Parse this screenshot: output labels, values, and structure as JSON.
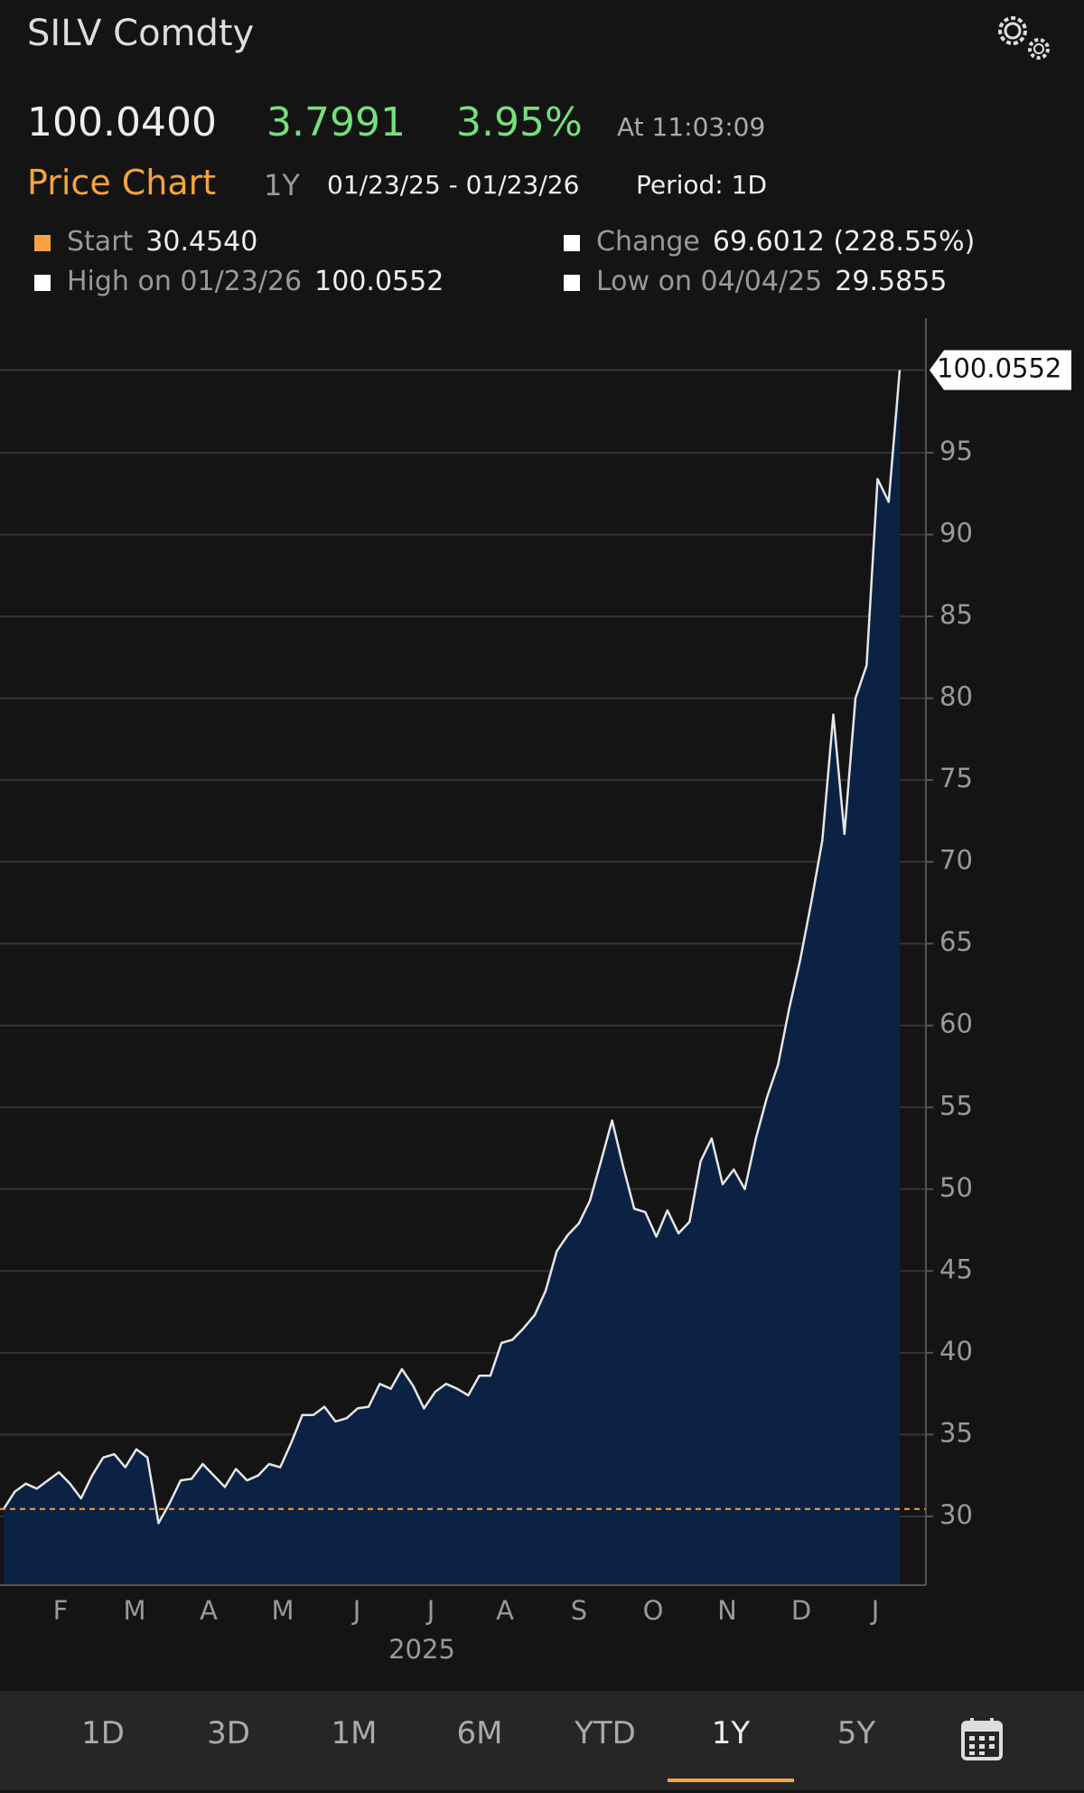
{
  "header": {
    "title": "SILV Comdty",
    "price": "100.0400",
    "change": "3.7991",
    "change_pct": "3.95%",
    "time": "At 11:03:09"
  },
  "chart_header": {
    "title": "Price Chart",
    "range": "1Y",
    "dates": "01/23/25 - 01/23/26",
    "period": "Period: 1D"
  },
  "stats": [
    {
      "label": "Start",
      "value": "30.4540",
      "color": "#f4a340"
    },
    {
      "label": "Change",
      "value": "69.6012 (228.55%)",
      "color": "#ffffff"
    },
    {
      "label": "High on 01/23/26",
      "value": "100.0552",
      "color": "#ffffff"
    },
    {
      "label": "Low on 04/04/25",
      "value": "29.5855",
      "color": "#ffffff"
    }
  ],
  "chart_data": {
    "type": "area",
    "color": "#e6e6e6",
    "fill": "#0b2244",
    "months": [
      "F",
      "M",
      "A",
      "M",
      "J",
      "J",
      "A",
      "S",
      "O",
      "N",
      "D",
      "J"
    ],
    "year": "2025",
    "values": [
      30.45,
      31.5,
      32.0,
      31.7,
      32.2,
      32.7,
      32.0,
      31.1,
      32.5,
      33.6,
      33.8,
      33.0,
      34.1,
      33.6,
      29.59,
      30.8,
      32.2,
      32.3,
      33.2,
      32.5,
      31.8,
      32.9,
      32.2,
      32.5,
      33.2,
      33.0,
      34.5,
      36.2,
      36.2,
      36.7,
      35.8,
      36.0,
      36.6,
      36.7,
      38.1,
      37.8,
      39.0,
      38.0,
      36.6,
      37.6,
      38.1,
      37.8,
      37.4,
      38.6,
      38.6,
      40.6,
      40.8,
      41.5,
      42.3,
      43.8,
      46.2,
      47.2,
      47.9,
      49.3,
      51.7,
      54.2,
      51.4,
      48.8,
      48.6,
      47.1,
      48.7,
      47.3,
      48.0,
      51.7,
      53.1,
      50.3,
      51.2,
      50.0,
      53.1,
      55.6,
      57.6,
      61.0,
      64.0,
      67.5,
      71.3,
      79.0,
      71.7,
      80.0,
      82.0,
      93.4,
      92.0,
      100.0552
    ],
    "reference_line": 30.454,
    "reference_color": "#f4a340",
    "ylim": [
      25.8,
      102.4
    ],
    "yticks": [
      30,
      35,
      40,
      45,
      50,
      55,
      60,
      65,
      70,
      75,
      80,
      85,
      90,
      95
    ],
    "grid": true
  },
  "tabs": [
    "1D",
    "3D",
    "1M",
    "6M",
    "YTD",
    "1Y",
    "5Y"
  ],
  "active_tab": "1Y"
}
